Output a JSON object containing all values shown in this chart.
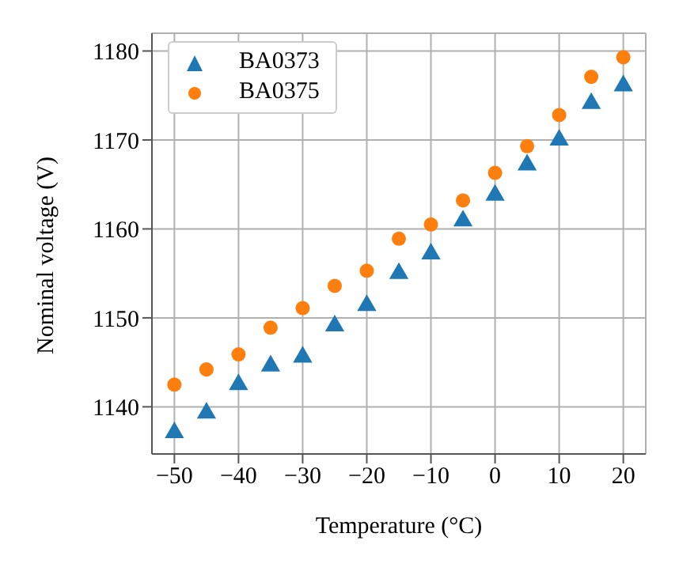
{
  "chart_data": {
    "type": "scatter",
    "xlabel": "Temperature (°C)",
    "ylabel": "Nominal voltage (V)",
    "x": [
      -50,
      -45,
      -40,
      -35,
      -30,
      -25,
      -20,
      -15,
      -10,
      -5,
      0,
      5,
      10,
      15,
      20
    ],
    "series": [
      {
        "name": "BA0373",
        "color": "#1f77b4",
        "marker": "triangle",
        "values": [
          1137.1,
          1139.3,
          1142.5,
          1144.6,
          1145.6,
          1149.1,
          1151.4,
          1155.0,
          1157.2,
          1160.9,
          1163.8,
          1167.2,
          1170.0,
          1174.1,
          1176.1
        ]
      },
      {
        "name": "BA0375",
        "color": "#ff7f0e",
        "marker": "circle",
        "values": [
          1142.5,
          1144.2,
          1145.9,
          1148.9,
          1151.1,
          1153.6,
          1155.3,
          1158.9,
          1160.5,
          1163.2,
          1166.3,
          1169.3,
          1172.8,
          1177.1,
          1179.3
        ]
      }
    ],
    "xlim": [
      -53.5,
      23.5
    ],
    "xticks": [
      -50,
      -40,
      -30,
      -20,
      -10,
      0,
      10,
      20
    ],
    "ylim": [
      1134.7,
      1182
    ],
    "yticks": [
      1140,
      1150,
      1160,
      1170,
      1180
    ],
    "grid": true,
    "legend": "top left"
  }
}
